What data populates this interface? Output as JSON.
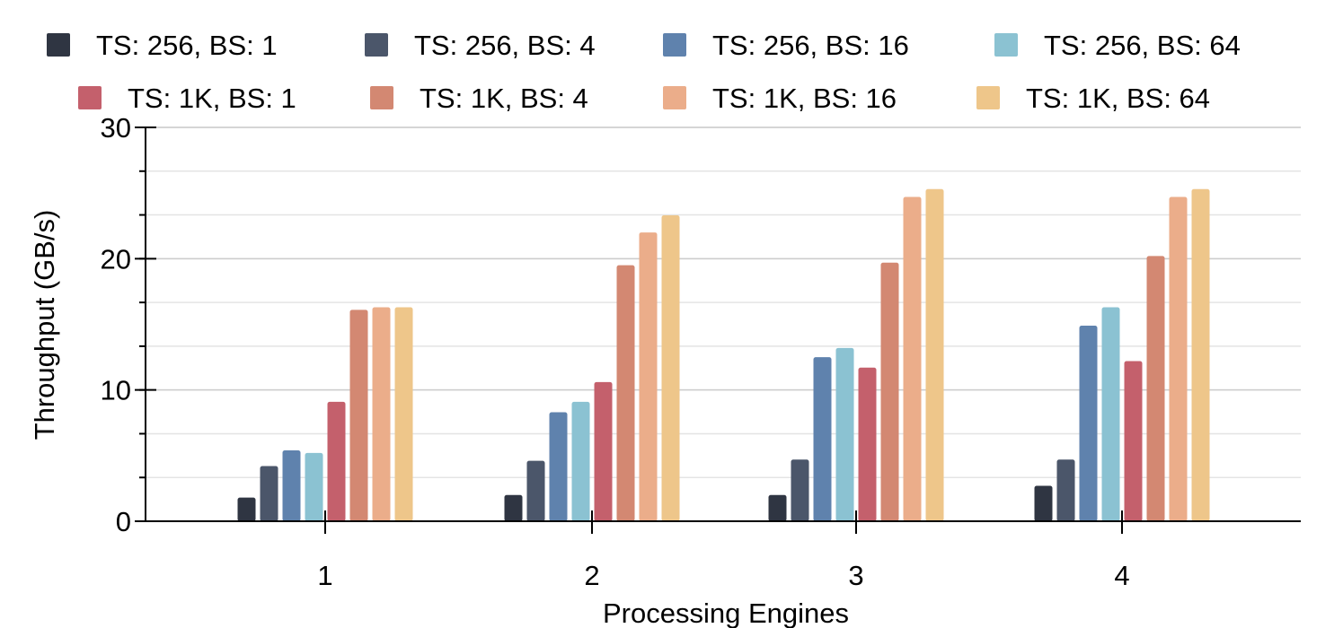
{
  "chart_data": {
    "type": "bar",
    "title": "",
    "xlabel": "Processing Engines",
    "ylabel": "Throughput (GB/s)",
    "ylim": [
      0,
      30
    ],
    "yticks": [
      0,
      10,
      20,
      30
    ],
    "y_minor_step": 3.33,
    "grid": true,
    "legend_position": "top",
    "categories": [
      "1",
      "2",
      "3",
      "4"
    ],
    "series": [
      {
        "name": "TS: 256, BS: 1",
        "color": "#2f3542",
        "values": [
          1.8,
          2.0,
          2.0,
          2.7
        ]
      },
      {
        "name": "TS: 256, BS: 4",
        "color": "#4b566a",
        "values": [
          4.2,
          4.6,
          4.7,
          4.7
        ]
      },
      {
        "name": "TS: 256, BS: 16",
        "color": "#5f82ad",
        "values": [
          5.4,
          8.3,
          12.5,
          14.9
        ]
      },
      {
        "name": "TS: 256, BS: 64",
        "color": "#8bc2d2",
        "values": [
          5.2,
          9.1,
          13.2,
          16.3
        ]
      },
      {
        "name": "TS: 1K, BS: 1",
        "color": "#c4606c",
        "values": [
          9.1,
          10.6,
          11.7,
          12.2
        ]
      },
      {
        "name": "TS: 1K, BS: 4",
        "color": "#d38872",
        "values": [
          16.1,
          19.5,
          19.7,
          20.2
        ]
      },
      {
        "name": "TS: 1K, BS: 16",
        "color": "#ebad8a",
        "values": [
          16.3,
          22.0,
          24.7,
          24.7
        ]
      },
      {
        "name": "TS: 1K, BS: 64",
        "color": "#eec68a",
        "values": [
          16.3,
          23.3,
          25.3,
          25.3
        ]
      }
    ]
  }
}
